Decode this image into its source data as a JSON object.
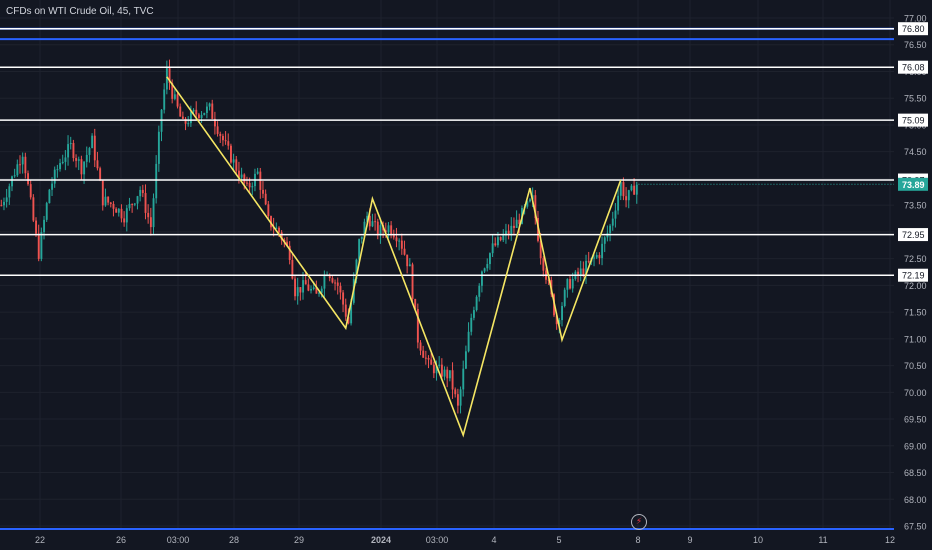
{
  "header": {
    "title": "CFDs on WTI Crude Oil, 45, TVC"
  },
  "icons": {
    "events": "lightning-bolt-icon"
  },
  "colors": {
    "background": "#131722",
    "grid": "#1e222d",
    "axis_text": "#b2b5be",
    "up": "#26a69a",
    "down": "#ef5350",
    "zigzag": "#f5e663",
    "hline_white": "#ffffff",
    "hline_blue": "#2962ff",
    "last_price_bg": "#26a69a"
  },
  "chart_data": {
    "type": "line",
    "title": "CFDs on WTI Crude Oil, 45, TVC",
    "ylim": [
      67.4,
      77.1
    ],
    "yticks": [
      "67.50",
      "68.00",
      "68.50",
      "69.00",
      "69.50",
      "70.00",
      "70.50",
      "71.00",
      "71.50",
      "72.00",
      "72.50",
      "73.00",
      "73.50",
      "74.00",
      "74.50",
      "75.00",
      "75.50",
      "76.00",
      "76.50",
      "77.00"
    ],
    "xticks": [
      "22",
      "26",
      "03:00",
      "28",
      "29",
      "2024",
      "03:00",
      "4",
      "5",
      "8",
      "9",
      "10",
      "11",
      "12"
    ],
    "grid": true,
    "horizontal_levels": [
      {
        "label": "76.80",
        "value": 76.8,
        "color": "white"
      },
      {
        "label": "76.08",
        "value": 76.08,
        "color": "white"
      },
      {
        "label": "75.09",
        "value": 75.09,
        "color": "white"
      },
      {
        "label": "73.97",
        "value": 73.97,
        "color": "white"
      },
      {
        "label": "72.95",
        "value": 72.95,
        "color": "white"
      },
      {
        "label": "72.19",
        "value": 72.19,
        "color": "white"
      }
    ],
    "blue_levels": [
      76.8,
      76.68,
      67.55
    ],
    "last_price": {
      "label": "73.89",
      "value": 73.89
    },
    "zigzag": [
      {
        "bar": 62,
        "price": 75.9
      },
      {
        "bar": 129,
        "price": 71.2
      },
      {
        "bar": 139,
        "price": 73.62
      },
      {
        "bar": 173,
        "price": 69.2
      },
      {
        "bar": 198,
        "price": 73.82
      },
      {
        "bar": 210,
        "price": 70.98
      },
      {
        "bar": 232,
        "price": 73.97
      }
    ],
    "price_path": [
      [
        0,
        73.5
      ],
      [
        4,
        74.0
      ],
      [
        8,
        74.5
      ],
      [
        12,
        73.2
      ],
      [
        14,
        72.6
      ],
      [
        18,
        73.8
      ],
      [
        22,
        74.3
      ],
      [
        26,
        74.6
      ],
      [
        30,
        74.2
      ],
      [
        34,
        74.7
      ],
      [
        38,
        73.6
      ],
      [
        42,
        73.5
      ],
      [
        46,
        73.3
      ],
      [
        52,
        73.8
      ],
      [
        56,
        73.1
      ],
      [
        60,
        75.3
      ],
      [
        62,
        76.0
      ],
      [
        64,
        75.6
      ],
      [
        68,
        75.0
      ],
      [
        72,
        75.2
      ],
      [
        78,
        75.3
      ],
      [
        84,
        74.6
      ],
      [
        88,
        74.2
      ],
      [
        92,
        73.8
      ],
      [
        96,
        74.1
      ],
      [
        100,
        73.2
      ],
      [
        104,
        73.0
      ],
      [
        108,
        72.6
      ],
      [
        110,
        71.9
      ],
      [
        114,
        72.0
      ],
      [
        118,
        71.8
      ],
      [
        122,
        72.3
      ],
      [
        126,
        72.0
      ],
      [
        130,
        71.3
      ],
      [
        134,
        72.8
      ],
      [
        137,
        73.3
      ],
      [
        141,
        73.0
      ],
      [
        145,
        73.1
      ],
      [
        149,
        72.9
      ],
      [
        153,
        72.3
      ],
      [
        156,
        71.0
      ],
      [
        160,
        70.5
      ],
      [
        164,
        70.4
      ],
      [
        168,
        70.3
      ],
      [
        171,
        69.7
      ],
      [
        176,
        71.4
      ],
      [
        180,
        72.3
      ],
      [
        184,
        72.7
      ],
      [
        188,
        72.9
      ],
      [
        192,
        73.1
      ],
      [
        196,
        73.4
      ],
      [
        199,
        73.6
      ],
      [
        202,
        72.6
      ],
      [
        205,
        72.0
      ],
      [
        208,
        71.3
      ],
      [
        212,
        72.0
      ],
      [
        216,
        72.2
      ],
      [
        220,
        72.4
      ],
      [
        224,
        72.6
      ],
      [
        228,
        73.1
      ],
      [
        232,
        73.9
      ],
      [
        234,
        73.6
      ],
      [
        238,
        73.89
      ]
    ]
  }
}
